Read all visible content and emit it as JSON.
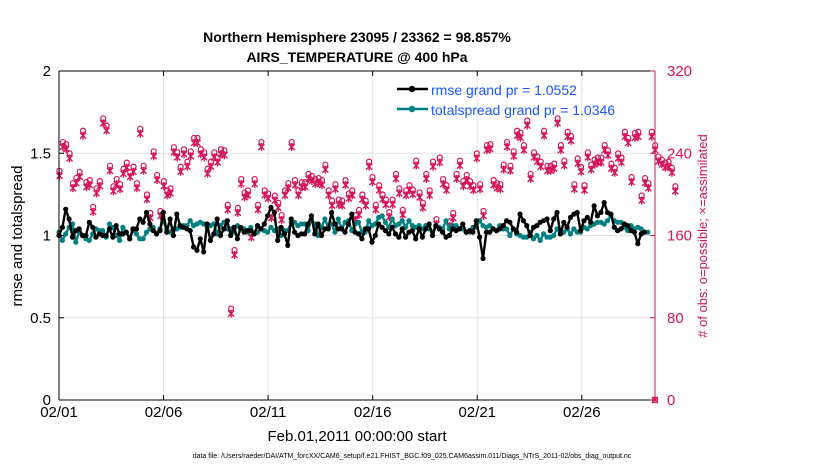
{
  "title": {
    "line1": "Northern Hemisphere 23095 / 23362 = 98.857%",
    "line2": "AIRS_TEMPERATURE @ 400 hPa"
  },
  "footer": {
    "xlabel": "Feb.01,2011 00:00:00 start",
    "datafile": "data file: /Users/raeder/DAI/ATM_forcXX/CAM6_setup/f.e21.FHIST_BGC.f09_025.CAM6assim.011/Diags_NTrS_2011-02/obs_diag_output.nc"
  },
  "colors": {
    "rmse": "#000000",
    "spread": "#008080",
    "obs": "#d4145a",
    "legend_text": "#1a57ff",
    "axis": "#000000"
  },
  "chart_data": {
    "type": "line",
    "title": "Northern Hemisphere 23095 / 23362 = 98.857%",
    "subtitle": "AIRS_TEMPERATURE @ 400 hPa",
    "xlabel": "Feb.01,2011 00:00:00 start",
    "ylabel": "rmse and totalspread",
    "y2label": "# of obs: o=possible; ×=assimilated",
    "xlim": [
      0,
      28.5
    ],
    "ylim": [
      0,
      2
    ],
    "y2lim": [
      0,
      320
    ],
    "x_ticks": [
      0,
      5,
      10,
      15,
      20,
      25
    ],
    "x_ticklabels": [
      "02/01",
      "02/06",
      "02/11",
      "02/16",
      "02/21",
      "02/26"
    ],
    "y_ticks": [
      0,
      0.5,
      1,
      1.5,
      2
    ],
    "y_ticklabels": [
      "0",
      "0.5",
      "1",
      "1.5",
      "2"
    ],
    "y2_ticks": [
      0,
      80,
      160,
      240,
      320
    ],
    "y2_ticklabels": [
      "0",
      "80",
      "160",
      "240",
      "320"
    ],
    "grid": true,
    "legend_position": "top-right",
    "series": [
      {
        "name": "rmse grand pr = 1.0552",
        "axis": "left",
        "values": [
          1.0,
          1.05,
          1.16,
          1.1,
          0.99,
          1.03,
          1.04,
          1.0,
          1.0,
          1.08,
          1.05,
          0.99,
          1.01,
          1.0,
          1.0,
          1.04,
          0.99,
          1.06,
          1.01,
          1.01,
          1.02,
          0.98,
          1.04,
          1.04,
          1.1,
          1.08,
          1.14,
          1.07,
          1.03,
          1.01,
          1.03,
          1.14,
          1.02,
          1.1,
          1.0,
          1.13,
          1.06,
          1.05,
          1.04,
          1.03,
          0.93,
          0.91,
          0.98,
          0.9,
          1.07,
          0.97,
          1.01,
          1.1,
          1.0,
          1.04,
          1.09,
          1.0,
          1.05,
          0.98,
          1.05,
          1.02,
          1.03,
          1.03,
          1.01,
          1.06,
          1.04,
          1.07,
          1.12,
          1.17,
          1.14,
          0.97,
          1.05,
          1.01,
          0.94,
          1.1,
          1.02,
          1.0,
          1.01,
          1.01,
          1.07,
          1.12,
          1.01,
          1.07,
          1.0,
          1.04,
          1.04,
          1.14,
          1.07,
          1.04,
          1.04,
          1.02,
          1.07,
          1.13,
          1.02,
          1.01,
          0.98,
          1.04,
          1.04,
          0.96,
          1.0,
          1.07,
          1.05,
          1.03,
          1.01,
          1.05,
          1.01,
          0.99,
          1.04,
          0.99,
          1.02,
          1.03,
          0.98,
          1.04,
          0.99,
          1.04,
          1.07,
          1.0,
          1.06,
          1.04,
          1.02,
          0.99,
          1.0,
          1.04,
          1.03,
          1.04,
          1.07,
          1.02,
          1.03,
          1.02,
          1.09,
          0.99,
          0.86,
          1.02,
          1.02,
          1.04,
          1.03,
          1.04,
          1.06,
          1.09,
          1.08,
          1.04,
          1.02,
          1.13,
          1.09,
          1.06,
          1.0,
          1.05,
          1.06,
          1.08,
          1.09,
          1.1,
          1.03,
          1.1,
          1.14,
          1.01,
          1.08,
          1.05,
          1.11,
          1.13,
          1.14,
          1.03,
          1.09,
          1.11,
          1.08,
          1.18,
          1.12,
          1.14,
          1.2,
          1.14,
          1.13,
          1.05,
          1.03,
          1.04,
          1.07,
          1.06,
          1.03,
          1.02,
          0.95,
          1.01,
          1.02
        ]
      },
      {
        "name": "totalspread grand pr = 1.0346",
        "axis": "left",
        "values": [
          1.02,
          0.97,
          1.01,
          1.05,
          1.07,
          0.96,
          1.02,
          1.0,
          0.98,
          0.97,
          1.01,
          1.04,
          1.03,
          1.03,
          0.99,
          1.07,
          1.05,
          1.0,
          0.97,
          1.05,
          1.02,
          0.98,
          1.03,
          1.01,
          0.98,
          0.98,
          1.02,
          1.04,
          1.05,
          1.01,
          1.04,
          1.09,
          1.04,
          1.02,
          1.04,
          1.04,
          1.05,
          1.06,
          1.06,
          1.09,
          1.06,
          1.07,
          1.08,
          1.07,
          1.05,
          1.06,
          1.07,
          1.01,
          1.06,
          1.08,
          1.04,
          1.04,
          1.02,
          1.06,
          1.04,
          1.04,
          1.02,
          1.05,
          1.01,
          1.02,
          1.04,
          1.03,
          1.02,
          1.05,
          1.03,
          1.04,
          1.0,
          1.03,
          1.03,
          1.08,
          1.08,
          1.06,
          1.07,
          1.07,
          1.03,
          1.1,
          1.07,
          1.0,
          1.05,
          1.1,
          1.05,
          1.07,
          1.02,
          1.1,
          1.04,
          1.08,
          1.09,
          1.03,
          1.07,
          1.08,
          1.02,
          1.02,
          1.09,
          1.06,
          1.07,
          1.11,
          1.12,
          1.08,
          1.05,
          1.1,
          1.06,
          1.07,
          1.09,
          1.05,
          1.09,
          1.06,
          1.05,
          1.06,
          1.04,
          1.06,
          1.04,
          1.02,
          1.06,
          1.05,
          1.04,
          1.09,
          1.04,
          1.06,
          1.06,
          1.04,
          1.04,
          1.02,
          1.02,
          1.05,
          1.05,
          1.09,
          1.06,
          1.05,
          1.06,
          1.04,
          1.03,
          1.06,
          1.04,
          1.04,
          1.0,
          1.04,
          1.01,
          1.0,
          0.99,
          0.99,
          1.02,
          0.98,
          1.0,
          0.97,
          1.01,
          0.99,
          0.99,
          1.0,
          1.04,
          1.01,
          1.02,
          1.04,
          1.01,
          1.04,
          1.02,
          1.02,
          1.05,
          1.04,
          1.06,
          1.07,
          1.08,
          1.08,
          1.07,
          1.09,
          1.12,
          1.09,
          1.08,
          1.08,
          1.05,
          1.03,
          1.06,
          1.04,
          1.05,
          1.04,
          1.02,
          1.02
        ]
      },
      {
        "name": "# of obs possible",
        "axis": "right",
        "values": [
          219,
          247,
          245,
          236,
          207,
          212,
          218,
          258,
          208,
          210,
          184,
          202,
          209,
          270,
          263,
          224,
          204,
          211,
          206,
          221,
          227,
          218,
          223,
          207,
          260,
          224,
          196,
          178,
          238,
          215,
          180,
          209,
          200,
          202,
          242,
          237,
          223,
          240,
          228,
          238,
          251,
          251,
          240,
          237,
          221,
          228,
          237,
          232,
          240,
          239,
          186,
          85,
          142,
          183,
          211,
          198,
          200,
          159,
          211,
          186,
          247,
          200,
          197,
          178,
          195,
          188,
          176,
          200,
          207,
          247,
          210,
          200,
          208,
          208,
          216,
          214,
          211,
          212,
          210,
          225,
          200,
          190,
          206,
          191,
          190,
          210,
          197,
          200,
          176,
          181,
          196,
          190,
          228,
          213,
          186,
          205,
          196,
          191,
          179,
          191,
          216,
          202,
          181,
          200,
          205,
          201,
          229,
          198,
          188,
          216,
          200,
          228,
          172,
          232,
          211,
          205,
          170,
          178,
          216,
          229,
          209,
          215,
          209,
          205,
          236,
          206,
          180,
          244,
          245,
          210,
          207,
          206,
          225,
          247,
          224,
          238,
          258,
          256,
          244,
          268,
          216,
          237,
          233,
          228,
          258,
          224,
          224,
          226,
          270,
          244,
          229,
          257,
          253,
          206,
          231,
          223,
          205,
          237,
          225,
          230,
          232,
          232,
          244,
          239,
          226,
          222,
          236,
          232,
          257,
          251,
          213,
          256,
          257,
          195,
          212,
          207,
          257,
          244,
          233,
          230,
          227,
          228,
          222,
          204
        ]
      }
    ]
  }
}
